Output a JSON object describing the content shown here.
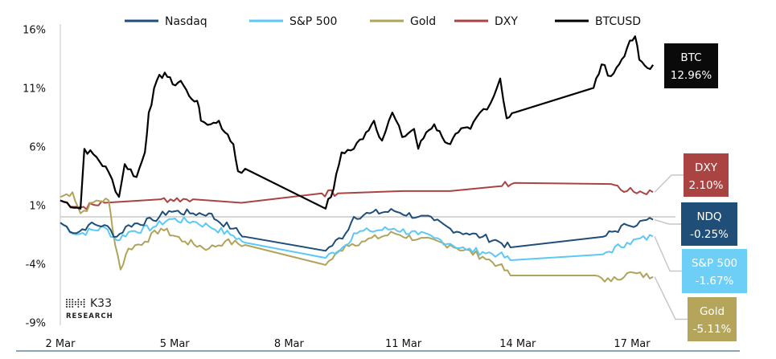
{
  "chart_data": {
    "type": "line",
    "title": "",
    "xlabel": "",
    "ylabel": "",
    "ylim": [
      -9,
      16
    ],
    "yticks": [
      "16%",
      "11%",
      "6%",
      "1%",
      "-4%",
      "-9%"
    ],
    "ytick_values": [
      16,
      11,
      6,
      1,
      -4,
      -9
    ],
    "xticks": [
      "2 Mar",
      "5 Mar",
      "8 Mar",
      "11 Mar",
      "14 Mar",
      "17 Mar"
    ],
    "xtick_values": [
      0,
      3,
      6,
      9,
      12,
      15
    ],
    "x_unit": "days since 2 Mar",
    "xlim": [
      0,
      15.55
    ],
    "legend_position": "top",
    "series": [
      {
        "name": "Nasdaq",
        "key": "ndq",
        "color": "#1f4e79",
        "points": [
          [
            0,
            -0.5
          ],
          [
            0.42,
            -1.4
          ],
          [
            0.74,
            -0.7
          ],
          [
            1.16,
            -0.7
          ],
          [
            1.48,
            -1.7
          ],
          [
            1.79,
            -0.7
          ],
          [
            2.43,
            -0.3
          ],
          [
            2.85,
            0.5
          ],
          [
            3.48,
            0.3
          ],
          [
            3.9,
            0.3
          ],
          [
            4.11,
            -0.3
          ],
          [
            4.54,
            -1.0
          ],
          [
            4.85,
            -1.7
          ],
          [
            6.96,
            -2.9
          ],
          [
            7.49,
            -1.4
          ],
          [
            7.7,
            0
          ],
          [
            8.12,
            0.3
          ],
          [
            8.76,
            0.5
          ],
          [
            9.39,
            0
          ],
          [
            9.81,
            -0.3
          ],
          [
            10.23,
            -1.0
          ],
          [
            10.65,
            -1.4
          ],
          [
            11.08,
            -1.7
          ],
          [
            11.5,
            -2.1
          ],
          [
            11.81,
            -2.6
          ],
          [
            14.24,
            -1.7
          ],
          [
            14.87,
            -0.7
          ],
          [
            15.55,
            -0.25
          ]
        ]
      },
      {
        "name": "S&P 500",
        "key": "spx",
        "color": "#5bc8f5",
        "points": [
          [
            0,
            -0.5
          ],
          [
            0.42,
            -1.5
          ],
          [
            1.16,
            -0.9
          ],
          [
            1.48,
            -2.0
          ],
          [
            1.79,
            -1.3
          ],
          [
            2.43,
            -0.9
          ],
          [
            2.85,
            -0.2
          ],
          [
            3.48,
            -0.4
          ],
          [
            3.9,
            -0.8
          ],
          [
            4.54,
            -1.6
          ],
          [
            4.85,
            -2.2
          ],
          [
            6.96,
            -3.5
          ],
          [
            7.49,
            -2.4
          ],
          [
            7.7,
            -1.4
          ],
          [
            8.12,
            -1.2
          ],
          [
            8.76,
            -1.0
          ],
          [
            9.39,
            -1.5
          ],
          [
            9.81,
            -1.8
          ],
          [
            10.23,
            -2.3
          ],
          [
            10.65,
            -2.8
          ],
          [
            11.08,
            -3.0
          ],
          [
            11.5,
            -3.2
          ],
          [
            11.81,
            -3.7
          ],
          [
            14.24,
            -3.2
          ],
          [
            14.87,
            -2.2
          ],
          [
            15.55,
            -1.67
          ]
        ]
      },
      {
        "name": "Gold",
        "key": "gold",
        "color": "#b0a45a",
        "points": [
          [
            0,
            1.7
          ],
          [
            0.32,
            2.1
          ],
          [
            0.53,
            0.3
          ],
          [
            0.95,
            1.4
          ],
          [
            1.27,
            1.4
          ],
          [
            1.37,
            -1.0
          ],
          [
            1.58,
            -4.5
          ],
          [
            1.79,
            -2.7
          ],
          [
            2.22,
            -2.1
          ],
          [
            2.64,
            -1.0
          ],
          [
            3.27,
            -2.1
          ],
          [
            3.9,
            -2.7
          ],
          [
            4.32,
            -2.1
          ],
          [
            4.85,
            -2.4
          ],
          [
            6.96,
            -4.1
          ],
          [
            7.49,
            -2.4
          ],
          [
            7.91,
            -2.1
          ],
          [
            8.76,
            -1.4
          ],
          [
            9.39,
            -1.9
          ],
          [
            10.23,
            -2.4
          ],
          [
            11.08,
            -3.4
          ],
          [
            11.5,
            -4.1
          ],
          [
            11.81,
            -5.0
          ],
          [
            14.03,
            -5.0
          ],
          [
            14.45,
            -5.5
          ],
          [
            14.87,
            -4.8
          ],
          [
            15.55,
            -5.11
          ]
        ]
      },
      {
        "name": "DXY",
        "key": "dxy",
        "color": "#a94442",
        "points": [
          [
            0,
            1.4
          ],
          [
            0.53,
            0.8
          ],
          [
            1.16,
            1.2
          ],
          [
            2.64,
            1.5
          ],
          [
            3.48,
            1.5
          ],
          [
            4.75,
            1.2
          ],
          [
            6.86,
            2.0
          ],
          [
            7.28,
            2.0
          ],
          [
            8.97,
            2.2
          ],
          [
            10.23,
            2.2
          ],
          [
            11.5,
            2.6
          ],
          [
            11.92,
            2.9
          ],
          [
            14.45,
            2.8
          ],
          [
            14.87,
            2.2
          ],
          [
            15.55,
            2.1
          ]
        ]
      },
      {
        "name": "BTCUSD",
        "key": "btc",
        "color": "#000000",
        "points": [
          [
            0,
            1.4
          ],
          [
            0.53,
            0.7
          ],
          [
            0.63,
            5.8
          ],
          [
            0.95,
            5.1
          ],
          [
            1.27,
            3.8
          ],
          [
            1.54,
            1.7
          ],
          [
            1.69,
            4.5
          ],
          [
            2.0,
            3.4
          ],
          [
            2.22,
            5.5
          ],
          [
            2.32,
            8.9
          ],
          [
            2.53,
            11.6
          ],
          [
            2.74,
            12.3
          ],
          [
            2.95,
            11.3
          ],
          [
            3.16,
            11.6
          ],
          [
            3.38,
            10.3
          ],
          [
            3.59,
            9.9
          ],
          [
            3.69,
            8.2
          ],
          [
            3.95,
            7.9
          ],
          [
            4.16,
            8.2
          ],
          [
            4.32,
            7.2
          ],
          [
            4.54,
            6.2
          ],
          [
            4.66,
            3.9
          ],
          [
            4.85,
            4.1
          ],
          [
            6.96,
            0.7
          ],
          [
            7.17,
            2.4
          ],
          [
            7.38,
            5.5
          ],
          [
            7.7,
            5.8
          ],
          [
            8.02,
            7.2
          ],
          [
            8.23,
            8.2
          ],
          [
            8.44,
            6.5
          ],
          [
            8.71,
            8.9
          ],
          [
            8.97,
            6.8
          ],
          [
            9.28,
            7.5
          ],
          [
            9.39,
            5.8
          ],
          [
            9.6,
            7.2
          ],
          [
            9.81,
            7.9
          ],
          [
            10.02,
            6.8
          ],
          [
            10.23,
            6.2
          ],
          [
            10.44,
            7.2
          ],
          [
            10.76,
            7.5
          ],
          [
            11.01,
            8.9
          ],
          [
            11.29,
            9.7
          ],
          [
            11.54,
            11.8
          ],
          [
            11.71,
            8.4
          ],
          [
            11.92,
            8.9
          ],
          [
            13.99,
            11.0
          ],
          [
            14.2,
            13.0
          ],
          [
            14.45,
            12.0
          ],
          [
            14.66,
            13.0
          ],
          [
            14.87,
            14.4
          ],
          [
            15.08,
            15.4
          ],
          [
            15.19,
            13.4
          ],
          [
            15.4,
            12.7
          ],
          [
            15.55,
            12.96
          ]
        ]
      }
    ],
    "end_labels": [
      {
        "key": "btc",
        "name": "BTC",
        "value": "12.96%",
        "color": "#0a0a0a"
      },
      {
        "key": "dxy",
        "name": "DXY",
        "value": "2.10%",
        "color": "#a94442"
      },
      {
        "key": "ndq",
        "name": "NDQ",
        "value": "-0.25%",
        "color": "#1f4e79"
      },
      {
        "key": "spx",
        "name": "S&P 500",
        "value": "-1.67%",
        "color": "#6dcff6"
      },
      {
        "key": "gold",
        "name": "Gold",
        "value": "-5.11%",
        "color": "#b5a55a"
      }
    ]
  },
  "logo": {
    "name": "K33",
    "sub": "RESEARCH"
  }
}
